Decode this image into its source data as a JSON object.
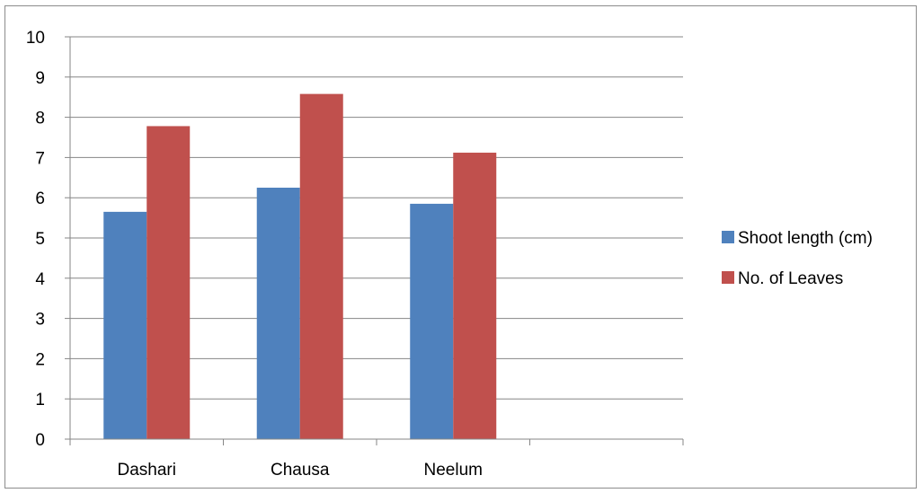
{
  "chart_data": {
    "type": "bar",
    "title": "",
    "xlabel": "",
    "ylabel": "",
    "categories": [
      "Dashari",
      "Chausa",
      "Neelum",
      ""
    ],
    "series": [
      {
        "name": "Shoot length (cm)",
        "color": "#4f81bd",
        "values": [
          5.65,
          6.25,
          5.85,
          null
        ]
      },
      {
        "name": "No. of Leaves",
        "color": "#c0504d",
        "values": [
          7.78,
          8.58,
          7.12,
          null
        ]
      }
    ],
    "ylim": [
      0,
      10
    ],
    "yticks": [
      "0",
      "1",
      "2",
      "3",
      "4",
      "5",
      "6",
      "7",
      "8",
      "9",
      "10"
    ],
    "grid": true,
    "gridline_color": "#868686",
    "legend_position": "right"
  }
}
